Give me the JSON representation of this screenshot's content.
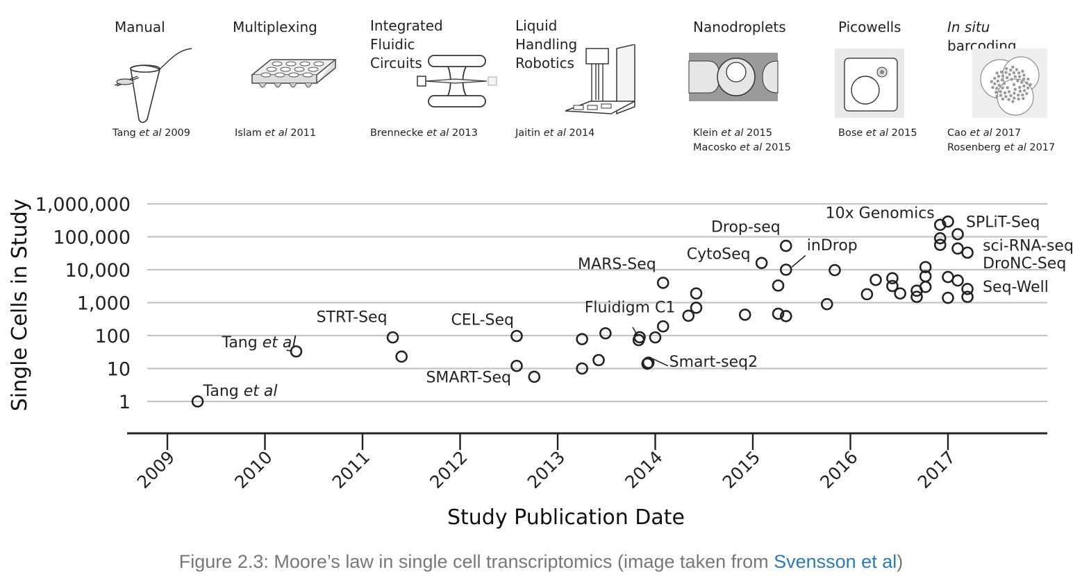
{
  "technologies": [
    {
      "name": "Manual",
      "refs": [
        "Tang et al 2009"
      ],
      "icon": "tube-icon"
    },
    {
      "name": "Multiplexing",
      "refs": [
        "Islam et al 2011"
      ],
      "icon": "well-plate-icon"
    },
    {
      "name": "Integrated Fluidic Circuits",
      "refs": [
        "Brennecke et al 2013"
      ],
      "icon": "fluidic-circuit-icon"
    },
    {
      "name": "Liquid Handling Robotics",
      "refs": [
        "Jaitin et al 2014"
      ],
      "icon": "robot-icon"
    },
    {
      "name": "Nanodroplets",
      "refs": [
        "Klein et al 2015",
        "Macosko et al 2015"
      ],
      "icon": "droplet-icon"
    },
    {
      "name": "Picowells",
      "refs": [
        "Bose et al 2015"
      ],
      "icon": "picowell-icon"
    },
    {
      "name": "In situ barcoding",
      "refs": [
        "Cao et al 2017",
        "Rosenberg et al 2017"
      ],
      "icon": "barcoding-icon"
    }
  ],
  "chart_data": {
    "type": "scatter",
    "xlabel": "Study Publication Date",
    "ylabel": "Single Cells in Study",
    "xlim": [
      2008.75,
      2018.0
    ],
    "ylim": [
      1,
      1000000
    ],
    "yscale": "log",
    "xticks": [
      "2009",
      "2010",
      "2011",
      "2012",
      "2013",
      "2014",
      "2015",
      "2016",
      "2017"
    ],
    "yticks": [
      {
        "value": 1,
        "label": "1"
      },
      {
        "value": 10,
        "label": "10"
      },
      {
        "value": 100,
        "label": "100"
      },
      {
        "value": 1000,
        "label": "1,000"
      },
      {
        "value": 10000,
        "label": "10,000"
      },
      {
        "value": 100000,
        "label": "100,000"
      },
      {
        "value": 1000000,
        "label": "1,000,000"
      }
    ],
    "grid": true,
    "points": [
      {
        "x": 2009.31,
        "y": 1
      },
      {
        "x": 2010.32,
        "y": 33
      },
      {
        "x": 2011.31,
        "y": 88
      },
      {
        "x": 2011.4,
        "y": 23
      },
      {
        "x": 2012.58,
        "y": 97
      },
      {
        "x": 2012.58,
        "y": 12
      },
      {
        "x": 2012.76,
        "y": 5.6
      },
      {
        "x": 2013.25,
        "y": 78
      },
      {
        "x": 2013.25,
        "y": 10
      },
      {
        "x": 2013.42,
        "y": 18
      },
      {
        "x": 2013.49,
        "y": 117
      },
      {
        "x": 2013.83,
        "y": 73
      },
      {
        "x": 2013.84,
        "y": 89
      },
      {
        "x": 2013.92,
        "y": 14
      },
      {
        "x": 2013.93,
        "y": 15
      },
      {
        "x": 2014.0,
        "y": 88
      },
      {
        "x": 2014.08,
        "y": 190
      },
      {
        "x": 2014.08,
        "y": 4000
      },
      {
        "x": 2014.34,
        "y": 400
      },
      {
        "x": 2014.42,
        "y": 700
      },
      {
        "x": 2014.42,
        "y": 1900
      },
      {
        "x": 2014.92,
        "y": 430
      },
      {
        "x": 2015.09,
        "y": 16000
      },
      {
        "x": 2015.26,
        "y": 3300
      },
      {
        "x": 2015.26,
        "y": 460
      },
      {
        "x": 2015.34,
        "y": 390
      },
      {
        "x": 2015.34,
        "y": 10000
      },
      {
        "x": 2015.34,
        "y": 53000
      },
      {
        "x": 2015.76,
        "y": 900
      },
      {
        "x": 2015.84,
        "y": 9700
      },
      {
        "x": 2016.17,
        "y": 1800
      },
      {
        "x": 2016.26,
        "y": 4900
      },
      {
        "x": 2016.43,
        "y": 5500
      },
      {
        "x": 2016.43,
        "y": 3200
      },
      {
        "x": 2016.51,
        "y": 1900
      },
      {
        "x": 2016.68,
        "y": 1500
      },
      {
        "x": 2016.68,
        "y": 2300
      },
      {
        "x": 2016.77,
        "y": 3000
      },
      {
        "x": 2016.77,
        "y": 6300
      },
      {
        "x": 2016.77,
        "y": 12000
      },
      {
        "x": 2016.92,
        "y": 230000
      },
      {
        "x": 2016.92,
        "y": 90000
      },
      {
        "x": 2016.92,
        "y": 57000
      },
      {
        "x": 2017.0,
        "y": 290000
      },
      {
        "x": 2017.0,
        "y": 6000
      },
      {
        "x": 2017.0,
        "y": 1400
      },
      {
        "x": 2017.1,
        "y": 120000
      },
      {
        "x": 2017.1,
        "y": 44000
      },
      {
        "x": 2017.1,
        "y": 4700
      },
      {
        "x": 2017.2,
        "y": 33000
      },
      {
        "x": 2017.2,
        "y": 2600
      },
      {
        "x": 2017.2,
        "y": 1500
      }
    ],
    "annotations": [
      {
        "text": "Tang et al",
        "ref": {
          "x": 2009.31,
          "y": 1
        },
        "anchor": "start",
        "dx": 8,
        "dy": -8,
        "italic_tail": "et al"
      },
      {
        "text": "Tang et al",
        "ref": {
          "x": 2010.32,
          "y": 33
        },
        "anchor": "end",
        "dx": 0,
        "dy": -6,
        "italic_tail": "et al"
      },
      {
        "text": "STRT-Seq",
        "ref": {
          "x": 2011.31,
          "y": 88
        },
        "anchor": "end",
        "dx": -8,
        "dy": -22
      },
      {
        "text": "CEL-Seq",
        "ref": {
          "x": 2012.58,
          "y": 97
        },
        "anchor": "end",
        "dx": -4,
        "dy": -16
      },
      {
        "text": "SMART-Seq",
        "ref": {
          "x": 2012.58,
          "y": 12
        },
        "anchor": "end",
        "dx": -8,
        "dy": 24
      },
      {
        "text": "Fluidigm C1",
        "ref": {
          "x": 2013.84,
          "y": 89
        },
        "anchor": "middle",
        "dx": -14,
        "dy": -36
      },
      {
        "text": "Smart-seq2",
        "ref": {
          "x": 2013.93,
          "y": 15
        },
        "anchor": "start",
        "dx": 30,
        "dy": 6
      },
      {
        "text": "MARS-Seq",
        "ref": {
          "x": 2014.08,
          "y": 4000
        },
        "anchor": "end",
        "dx": -10,
        "dy": -20
      },
      {
        "text": "CytoSeq",
        "ref": {
          "x": 2015.09,
          "y": 16000
        },
        "anchor": "end",
        "dx": -16,
        "dy": -6
      },
      {
        "text": "Drop-seq",
        "ref": {
          "x": 2015.34,
          "y": 53000
        },
        "anchor": "end",
        "dx": -8,
        "dy": -20
      },
      {
        "text": "inDrop",
        "ref": {
          "x": 2015.34,
          "y": 10000
        },
        "anchor": "start",
        "dx": 30,
        "dy": -28
      },
      {
        "text": "10x Genomics",
        "ref": {
          "x": 2016.92,
          "y": 230000
        },
        "anchor": "end",
        "dx": -8,
        "dy": -10
      },
      {
        "text": "SPLiT-Seq",
        "ref": {
          "x": 2017.0,
          "y": 290000
        },
        "anchor": "start",
        "dx": 26,
        "dy": 8
      },
      {
        "text": "sci-RNA-seq",
        "ref": {
          "x": 2017.2,
          "y": 33000
        },
        "anchor": "start",
        "dx": 22,
        "dy": -3
      },
      {
        "text": "DroNC-Seq",
        "ref": {
          "x": 2017.2,
          "y": 12000
        },
        "anchor": "start",
        "dx": 22,
        "dy": 2
      },
      {
        "text": "Seq-Well",
        "ref": {
          "x": 2017.2,
          "y": 2600
        },
        "anchor": "start",
        "dx": 22,
        "dy": 4
      }
    ],
    "leaders": [
      {
        "from": {
          "x": 2013.77,
          "y": 180
        },
        "to": {
          "x": 2013.82,
          "y": 95
        }
      },
      {
        "from": {
          "x": 2013.97,
          "y": 20
        },
        "to": {
          "x": 2014.13,
          "y": 12
        }
      },
      {
        "from": {
          "x": 2015.4,
          "y": 12000
        },
        "to": {
          "x": 2015.54,
          "y": 27000
        }
      },
      {
        "from": {
          "x": 2010.22,
          "y": 36
        },
        "to": {
          "x": 2010.28,
          "y": 34
        }
      }
    ]
  },
  "caption": {
    "text": "Figure 2.3: Moore’s law in single cell transcriptomics (image taken from ",
    "link": "Svensson et al",
    "close": ")"
  }
}
